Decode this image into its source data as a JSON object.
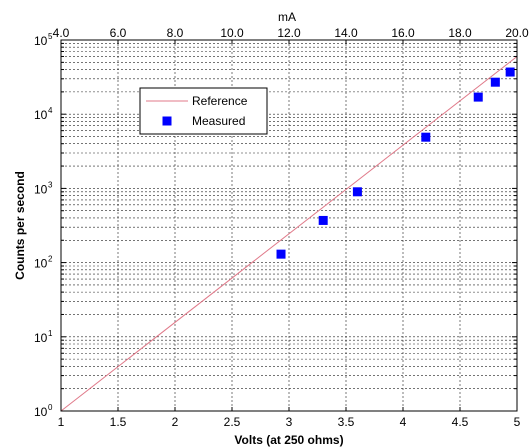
{
  "chart_data": {
    "type": "scatter",
    "xlabel": "Volts (at 250 ohms)",
    "ylabel": "Counts per second",
    "top_xlabel": "mA",
    "xlim": [
      1,
      5
    ],
    "ylim": [
      1,
      100000
    ],
    "y_scale": "log",
    "grid": true,
    "legend_position": "upper-left",
    "x_ticks": [
      "1",
      "1.5",
      "2",
      "2.5",
      "3",
      "3.5",
      "4",
      "4.5",
      "5"
    ],
    "x_tick_values": [
      1,
      1.5,
      2,
      2.5,
      3,
      3.5,
      4,
      4.5,
      5
    ],
    "top_x_ticks": [
      "4.0",
      "6.0",
      "8.0",
      "10.0",
      "12.0",
      "14.0",
      "16.0",
      "18.0",
      "20.0"
    ],
    "top_x_tick_values": [
      4,
      6,
      8,
      10,
      12,
      14,
      16,
      18,
      20
    ],
    "y_tick_exponents": [
      "0",
      "1",
      "2",
      "3",
      "4",
      "5"
    ],
    "y_tick_base": "10",
    "series": [
      {
        "name": "Reference",
        "kind": "line",
        "color": "#e07a8a",
        "x": [
          1,
          5
        ],
        "y": [
          1,
          60000
        ]
      },
      {
        "name": "Measured",
        "kind": "marker",
        "color": "#0000ff",
        "x": [
          2.93,
          3.3,
          3.6,
          4.2,
          4.66,
          4.81,
          4.94
        ],
        "y": [
          130,
          370,
          900,
          4900,
          17000,
          27000,
          37000
        ]
      }
    ]
  }
}
